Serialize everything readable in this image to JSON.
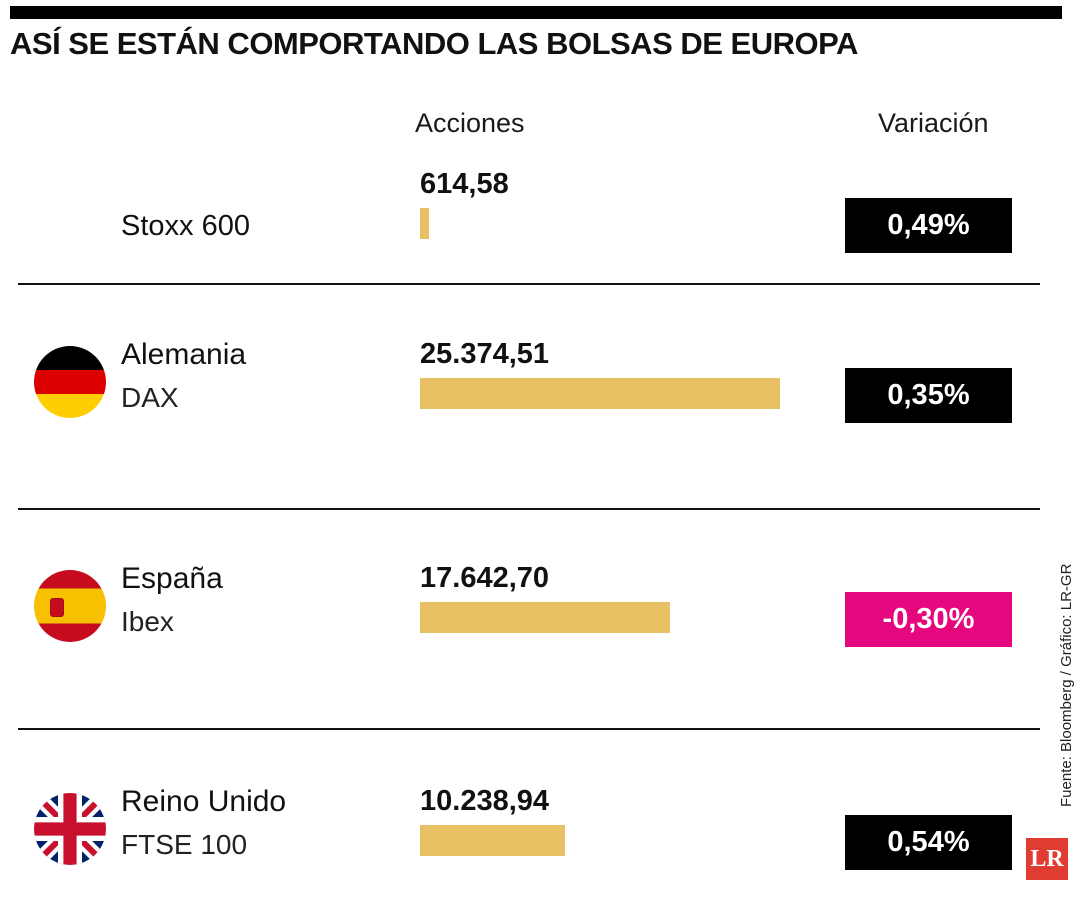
{
  "title": "ASÍ SE ESTÁN COMPORTANDO LAS BOLSAS DE EUROPA",
  "columns": {
    "acciones": "Acciones",
    "variacion": "Variación"
  },
  "source": "Fuente: Bloomberg / Gráfico: LR-GR",
  "logo_text": "LR",
  "colors": {
    "bar_gold": "#e8c164",
    "positive_bg": "#000000",
    "negative_bg": "#e5077d",
    "logo_red": "#e03c31"
  },
  "rows": [
    {
      "name": "Stoxx 600",
      "index": "",
      "value": "614,58",
      "value_num": 614.58,
      "variation": "0,49%",
      "negative": false,
      "flag": "none"
    },
    {
      "name": "Alemania",
      "index": "DAX",
      "value": "25.374,51",
      "value_num": 25374.51,
      "variation": "0,35%",
      "negative": false,
      "flag": "germany"
    },
    {
      "name": "España",
      "index": "Ibex",
      "value": "17.642,70",
      "value_num": 17642.7,
      "variation": "-0,30%",
      "negative": true,
      "flag": "spain"
    },
    {
      "name": "Reino Unido",
      "index": "FTSE 100",
      "value": "10.238,94",
      "value_num": 10238.94,
      "variation": "0,54%",
      "negative": false,
      "flag": "uk"
    }
  ],
  "chart_data": {
    "type": "bar",
    "orientation": "horizontal",
    "title": "ASÍ SE ESTÁN COMPORTANDO LAS BOLSAS DE EUROPA",
    "categories": [
      "Stoxx 600",
      "Alemania DAX",
      "España Ibex",
      "Reino Unido FTSE 100"
    ],
    "series": [
      {
        "name": "Acciones",
        "values": [
          614.58,
          25374.51,
          17642.7,
          10238.94
        ]
      },
      {
        "name": "Variación %",
        "values": [
          0.49,
          0.35,
          -0.3,
          0.54
        ]
      }
    ],
    "xlabel": "Acciones",
    "ylabel": "",
    "legend": false,
    "grid": false,
    "source": "Fuente: Bloomberg / Gráfico: LR-GR"
  }
}
